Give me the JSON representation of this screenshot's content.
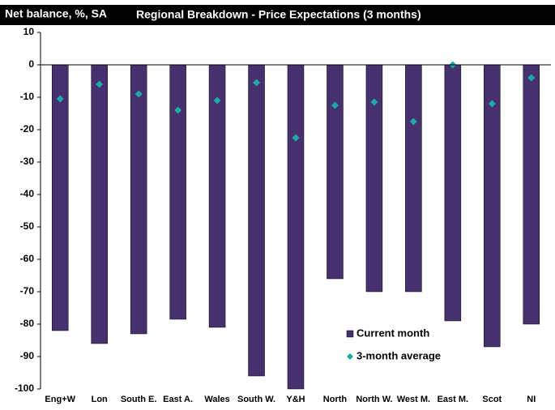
{
  "chart_data": {
    "type": "bar",
    "ylabel": "Net balance, %, SA",
    "title": "Regional Breakdown - Price Expectations (3 months)",
    "categories": [
      "Eng+W",
      "Lon",
      "South E.",
      "East A.",
      "Wales",
      "South W.",
      "Y&H",
      "North",
      "North W.",
      "West M.",
      "East M.",
      "Scot",
      "NI"
    ],
    "series": [
      {
        "name": "Current month",
        "type": "bar",
        "color": "#46316e",
        "values": [
          -82,
          -86,
          -83,
          -78.5,
          -81,
          -96,
          -100,
          -66,
          -70,
          -70,
          -79,
          -87,
          -80
        ]
      },
      {
        "name": "3-month average",
        "type": "scatter",
        "color": "#1fa8a8",
        "values": [
          -10.5,
          -6,
          -9,
          -14,
          -11,
          -5.5,
          -22.5,
          -12.5,
          -11.5,
          -17.5,
          0,
          -12,
          -4
        ]
      }
    ],
    "ylim": [
      -100,
      10
    ],
    "yticks": [
      10,
      0,
      -10,
      -20,
      -30,
      -40,
      -50,
      -60,
      -70,
      -80,
      -90,
      -100
    ]
  }
}
